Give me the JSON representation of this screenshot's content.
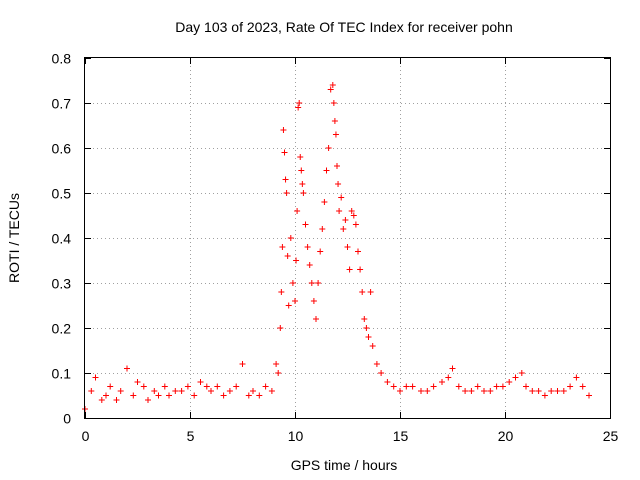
{
  "chart_data": {
    "type": "scatter",
    "title": "Day 103 of 2023, Rate Of TEC Index for receiver pohn",
    "xlabel": "GPS time / hours",
    "ylabel": "ROTI / TECUs",
    "xlim": [
      0,
      25
    ],
    "ylim": [
      0,
      0.8
    ],
    "xticks": [
      0,
      5,
      10,
      15,
      20,
      25
    ],
    "xtick_labels": [
      "0",
      "5",
      "10",
      "15",
      "20",
      "25"
    ],
    "yticks": [
      0,
      0.1,
      0.2,
      0.3,
      0.4,
      0.5,
      0.6,
      0.7,
      0.8
    ],
    "ytick_labels": [
      "0",
      "0.1",
      "0.2",
      "0.3",
      "0.4",
      "0.5",
      "0.6",
      "0.7",
      "0.8"
    ],
    "grid": true,
    "marker": "+",
    "color": "#ff0000",
    "series": [
      {
        "points": [
          [
            0.0,
            0.02
          ],
          [
            0.3,
            0.06
          ],
          [
            0.5,
            0.09
          ],
          [
            0.8,
            0.04
          ],
          [
            1.0,
            0.05
          ],
          [
            1.2,
            0.07
          ],
          [
            1.5,
            0.04
          ],
          [
            1.7,
            0.06
          ],
          [
            2.0,
            0.11
          ],
          [
            2.3,
            0.05
          ],
          [
            2.5,
            0.08
          ],
          [
            2.8,
            0.07
          ],
          [
            3.0,
            0.04
          ],
          [
            3.3,
            0.06
          ],
          [
            3.5,
            0.05
          ],
          [
            3.8,
            0.07
          ],
          [
            4.0,
            0.05
          ],
          [
            4.3,
            0.06
          ],
          [
            4.6,
            0.06
          ],
          [
            4.9,
            0.07
          ],
          [
            5.2,
            0.05
          ],
          [
            5.5,
            0.08
          ],
          [
            5.8,
            0.07
          ],
          [
            6.0,
            0.06
          ],
          [
            6.3,
            0.07
          ],
          [
            6.6,
            0.05
          ],
          [
            6.9,
            0.06
          ],
          [
            7.2,
            0.07
          ],
          [
            7.5,
            0.12
          ],
          [
            7.8,
            0.05
          ],
          [
            8.0,
            0.06
          ],
          [
            8.3,
            0.05
          ],
          [
            8.6,
            0.07
          ],
          [
            8.9,
            0.06
          ],
          [
            9.1,
            0.12
          ],
          [
            9.2,
            0.1
          ],
          [
            9.3,
            0.2
          ],
          [
            9.35,
            0.28
          ],
          [
            9.4,
            0.38
          ],
          [
            9.45,
            0.64
          ],
          [
            9.5,
            0.59
          ],
          [
            9.55,
            0.53
          ],
          [
            9.6,
            0.5
          ],
          [
            9.65,
            0.36
          ],
          [
            9.7,
            0.25
          ],
          [
            9.8,
            0.4
          ],
          [
            9.9,
            0.3
          ],
          [
            10.0,
            0.26
          ],
          [
            10.05,
            0.35
          ],
          [
            10.1,
            0.46
          ],
          [
            10.15,
            0.69
          ],
          [
            10.2,
            0.7
          ],
          [
            10.25,
            0.58
          ],
          [
            10.3,
            0.55
          ],
          [
            10.35,
            0.52
          ],
          [
            10.4,
            0.5
          ],
          [
            10.5,
            0.43
          ],
          [
            10.6,
            0.38
          ],
          [
            10.7,
            0.34
          ],
          [
            10.8,
            0.3
          ],
          [
            10.9,
            0.26
          ],
          [
            11.0,
            0.22
          ],
          [
            11.1,
            0.3
          ],
          [
            11.2,
            0.37
          ],
          [
            11.3,
            0.42
          ],
          [
            11.4,
            0.48
          ],
          [
            11.5,
            0.55
          ],
          [
            11.6,
            0.6
          ],
          [
            11.7,
            0.73
          ],
          [
            11.8,
            0.74
          ],
          [
            11.85,
            0.7
          ],
          [
            11.9,
            0.66
          ],
          [
            11.95,
            0.63
          ],
          [
            12.0,
            0.56
          ],
          [
            12.05,
            0.52
          ],
          [
            12.1,
            0.46
          ],
          [
            12.2,
            0.49
          ],
          [
            12.3,
            0.42
          ],
          [
            12.4,
            0.44
          ],
          [
            12.5,
            0.38
          ],
          [
            12.6,
            0.33
          ],
          [
            12.7,
            0.46
          ],
          [
            12.8,
            0.45
          ],
          [
            12.9,
            0.43
          ],
          [
            13.0,
            0.37
          ],
          [
            13.1,
            0.33
          ],
          [
            13.2,
            0.28
          ],
          [
            13.3,
            0.22
          ],
          [
            13.4,
            0.2
          ],
          [
            13.5,
            0.18
          ],
          [
            13.6,
            0.28
          ],
          [
            13.7,
            0.16
          ],
          [
            13.9,
            0.12
          ],
          [
            14.1,
            0.1
          ],
          [
            14.4,
            0.08
          ],
          [
            14.7,
            0.07
          ],
          [
            15.0,
            0.06
          ],
          [
            15.3,
            0.07
          ],
          [
            15.6,
            0.07
          ],
          [
            16.0,
            0.06
          ],
          [
            16.3,
            0.06
          ],
          [
            16.6,
            0.07
          ],
          [
            17.0,
            0.08
          ],
          [
            17.3,
            0.09
          ],
          [
            17.5,
            0.11
          ],
          [
            17.8,
            0.07
          ],
          [
            18.1,
            0.06
          ],
          [
            18.4,
            0.06
          ],
          [
            18.7,
            0.07
          ],
          [
            19.0,
            0.06
          ],
          [
            19.3,
            0.06
          ],
          [
            19.6,
            0.07
          ],
          [
            19.9,
            0.07
          ],
          [
            20.2,
            0.08
          ],
          [
            20.5,
            0.09
          ],
          [
            20.8,
            0.1
          ],
          [
            21.0,
            0.07
          ],
          [
            21.3,
            0.06
          ],
          [
            21.6,
            0.06
          ],
          [
            21.9,
            0.05
          ],
          [
            22.2,
            0.06
          ],
          [
            22.5,
            0.06
          ],
          [
            22.8,
            0.06
          ],
          [
            23.1,
            0.07
          ],
          [
            23.4,
            0.09
          ],
          [
            23.7,
            0.07
          ],
          [
            24.0,
            0.05
          ]
        ]
      }
    ]
  }
}
